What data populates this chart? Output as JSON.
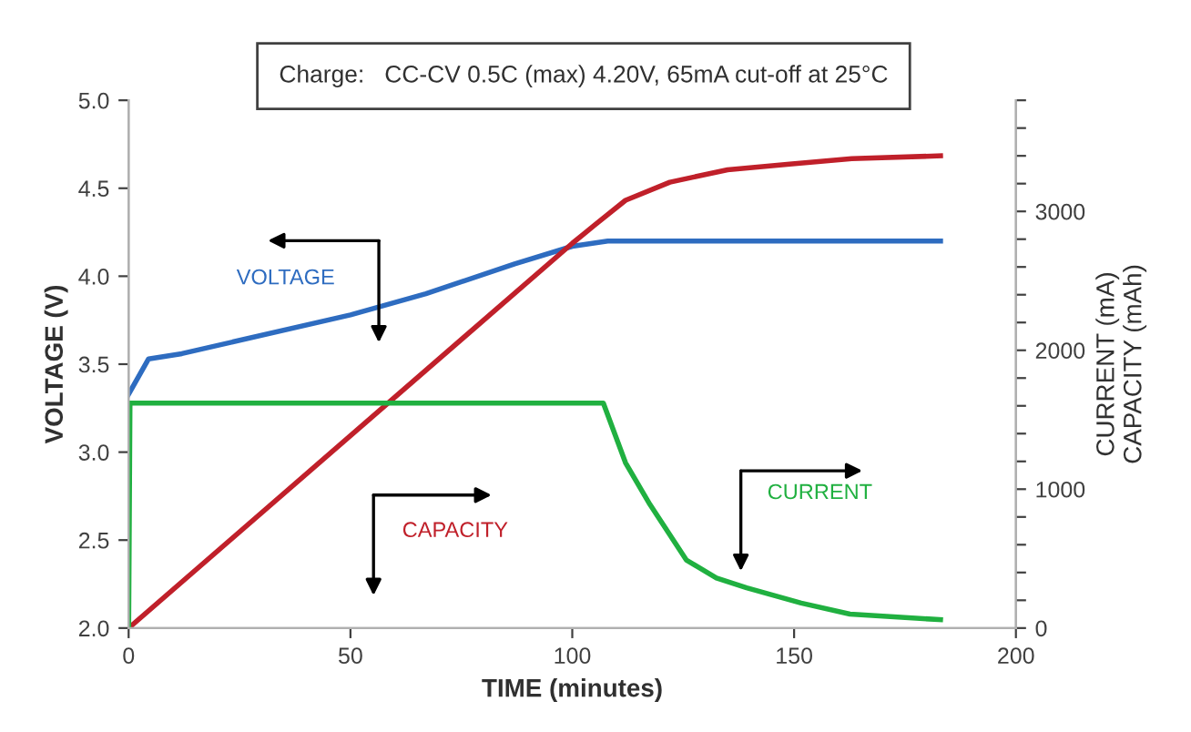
{
  "chart_data": {
    "type": "line",
    "xlabel": "TIME (minutes)",
    "ylabel": "VOLTAGE (V)",
    "y2label": "CURRENT (mA)\nCAPACITY (mAh)",
    "annotations": [
      "Charge:   CC-CV 0.5C (max) 4.20V, 65mA cut-off at 25°C"
    ],
    "xlim": [
      0,
      200
    ],
    "xticks": [
      0,
      50,
      100,
      150,
      200
    ],
    "ylim": [
      2.0,
      5.0
    ],
    "yticks": [
      {
        "value": 2.0,
        "label": "2.0"
      },
      2.5,
      {
        "value": 3.0,
        "label": "3.0"
      },
      3.5,
      {
        "value": 4.0,
        "label": "4.0"
      },
      4.5,
      {
        "value": 5.0,
        "label": "5.0"
      }
    ],
    "y2lim": [
      0,
      3800
    ],
    "y2ticks": [
      0,
      {
        "value": 200,
        "label": null
      },
      {
        "value": 400,
        "label": null
      },
      {
        "value": 600,
        "label": null
      },
      {
        "value": 800,
        "label": null
      },
      1000,
      {
        "value": 1200,
        "label": null
      },
      {
        "value": 1400,
        "label": null
      },
      {
        "value": 1600,
        "label": null
      },
      {
        "value": 1800,
        "label": null
      },
      2000,
      {
        "value": 2200,
        "label": null
      },
      {
        "value": 2400,
        "label": null
      },
      {
        "value": 2600,
        "label": null
      },
      {
        "value": 2800,
        "label": null
      },
      3000,
      {
        "value": 3200,
        "label": null
      },
      {
        "value": 3400,
        "label": null
      },
      {
        "value": 3600,
        "label": null
      },
      {
        "value": 3800,
        "label": null
      }
    ],
    "grid": false,
    "legend": false,
    "series": [
      {
        "name": "VOLTAGE",
        "color": "#2e6cc0",
        "x": [
          0,
          4.5,
          12,
          50,
          67,
          87,
          100,
          108,
          183
        ],
        "values": [
          3.33,
          3.53,
          3.56,
          3.78,
          3.9,
          4.07,
          4.17,
          4.2,
          4.2
        ]
      },
      {
        "name": "CAPACITY",
        "color": "#c0202a",
        "axis": "y2",
        "x": [
          0,
          100,
          105,
          112,
          122,
          135,
          149,
          163,
          183
        ],
        "values": [
          0,
          2770,
          2900,
          3080,
          3210,
          3300,
          3340,
          3380,
          3400
        ]
      },
      {
        "name": "CURRENT",
        "color": "#20b040",
        "axis": "y2",
        "x": [
          0,
          0.3,
          107,
          112,
          117.5,
          125.7,
          132.5,
          139.3,
          151.6,
          162.6,
          183
        ],
        "values": [
          0,
          1620,
          1620,
          1190,
          890,
          490,
          360,
          290,
          180,
          100,
          60
        ]
      }
    ]
  }
}
